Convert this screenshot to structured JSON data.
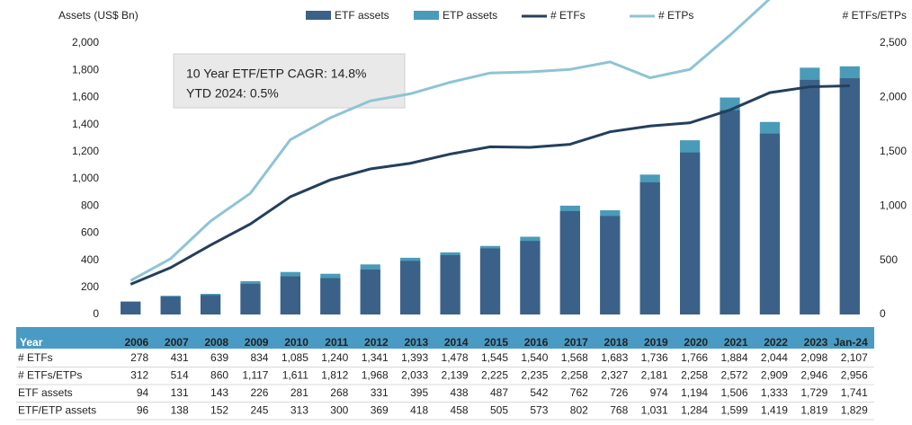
{
  "chart_data": {
    "type": "bar-line",
    "y_label": "Assets (US$ Bn)",
    "y2_label": "# ETFs/ETPs",
    "annotations": [
      "10 Year ETF/ETP CAGR: 14.8%",
      "YTD 2024: 0.5%"
    ],
    "categories": [
      "2006",
      "2007",
      "2008",
      "2009",
      "2010",
      "2011",
      "2012",
      "2013",
      "2014",
      "2015",
      "2016",
      "2017",
      "2018",
      "2019",
      "2020",
      "2021",
      "2022",
      "2023",
      "Jan-24"
    ],
    "series": [
      {
        "name": "ETF assets",
        "kind": "bar",
        "color": "#3b6188",
        "values": [
          94,
          131,
          143,
          226,
          281,
          268,
          331,
          395,
          438,
          487,
          542,
          762,
          726,
          974,
          1194,
          1506,
          1333,
          1729,
          1741
        ],
        "value_labels": [
          "94",
          "131",
          "143",
          "226",
          "281",
          "268",
          "331",
          "395",
          "438",
          "487",
          "542",
          "762",
          "726",
          "974",
          "1,194",
          "1,506",
          "1,333",
          "1,729",
          "1,741"
        ]
      },
      {
        "name": "ETP assets",
        "kind": "bar",
        "color": "#4a9bb8",
        "values": [
          96,
          138,
          152,
          245,
          313,
          300,
          369,
          418,
          458,
          505,
          573,
          802,
          768,
          1031,
          1284,
          1599,
          1419,
          1819,
          1829
        ],
        "value_labels": [
          "96",
          "138",
          "152",
          "245",
          "313",
          "300",
          "369",
          "418",
          "458",
          "505",
          "573",
          "802",
          "768",
          "1,031",
          "1,284",
          "1,599",
          "1,419",
          "1,819",
          "1,829"
        ]
      },
      {
        "name": "# ETFs",
        "kind": "line",
        "axis": "y2",
        "color": "#243f5c",
        "values": [
          278,
          431,
          639,
          834,
          1085,
          1240,
          1341,
          1393,
          1478,
          1545,
          1540,
          1568,
          1683,
          1736,
          1766,
          1884,
          2044,
          2098,
          2107
        ],
        "value_labels": [
          "278",
          "431",
          "639",
          "834",
          "1,085",
          "1,240",
          "1,341",
          "1,393",
          "1,478",
          "1,545",
          "1,540",
          "1,568",
          "1,683",
          "1,736",
          "1,766",
          "1,884",
          "2,044",
          "2,098",
          "2,107"
        ]
      },
      {
        "name": "# ETPs",
        "kind": "line",
        "axis": "y2",
        "color": "#8dc4d4",
        "values": [
          312,
          514,
          860,
          1117,
          1611,
          1812,
          1968,
          2033,
          2139,
          2225,
          2235,
          2258,
          2327,
          2181,
          2258,
          2572,
          2909,
          2946,
          2956
        ],
        "value_labels": [
          "312",
          "514",
          "860",
          "1,117",
          "1,611",
          "1,812",
          "1,968",
          "2,033",
          "2,139",
          "2,225",
          "2,235",
          "2,258",
          "2,327",
          "2,181",
          "2,258",
          "2,572",
          "2,909",
          "2,946",
          "2,956"
        ]
      }
    ],
    "ylim": [
      0,
      2000
    ],
    "yticks": [
      0,
      200,
      400,
      600,
      800,
      {
        "value": 1000,
        "label": "1,000"
      },
      {
        "value": 1200,
        "label": "1,200"
      },
      {
        "value": 1400,
        "label": "1,400"
      },
      {
        "value": 1600,
        "label": "1,600"
      },
      {
        "value": 1800,
        "label": "1,800"
      },
      {
        "value": 2000,
        "label": "2,000"
      }
    ],
    "y2lim": [
      0,
      2500
    ],
    "y2ticks": [
      0,
      500,
      {
        "value": 1000,
        "label": "1,000"
      },
      {
        "value": 1500,
        "label": "1,500"
      },
      {
        "value": 2000,
        "label": "2,000"
      },
      {
        "value": 2500,
        "label": "2,500"
      }
    ],
    "grid": false,
    "legend": "top",
    "table": {
      "header": "Year",
      "row_labels": [
        "# ETFs",
        "# ETFs/ETPs",
        "ETF assets",
        "ETF/ETP assets"
      ],
      "row_series": [
        2,
        3,
        0,
        1
      ]
    }
  }
}
